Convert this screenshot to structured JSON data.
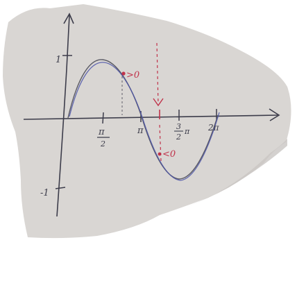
{
  "photo": {
    "subject": "hand-drawn sine curve on paper",
    "colors": {
      "paper": "#d9d6d3",
      "paper_shadow": "#c9c6c3",
      "pen_dark": "#3c3c4a",
      "pen_blue": "#4a52a8",
      "pen_red": "#c0324a",
      "background": "#ffffff"
    }
  },
  "labels": {
    "y_pos_one": "1",
    "y_neg_one": "-1",
    "x_pi_over_2_num": "π",
    "x_pi_over_2_den": "2",
    "x_pi": "π",
    "x_3pi_over_2_num": "3",
    "x_3pi_over_2_den": "2",
    "x_3pi_over_2_pi": "π",
    "x_2pi": "2π",
    "sign_positive": ">0",
    "sign_negative": "<0"
  }
}
